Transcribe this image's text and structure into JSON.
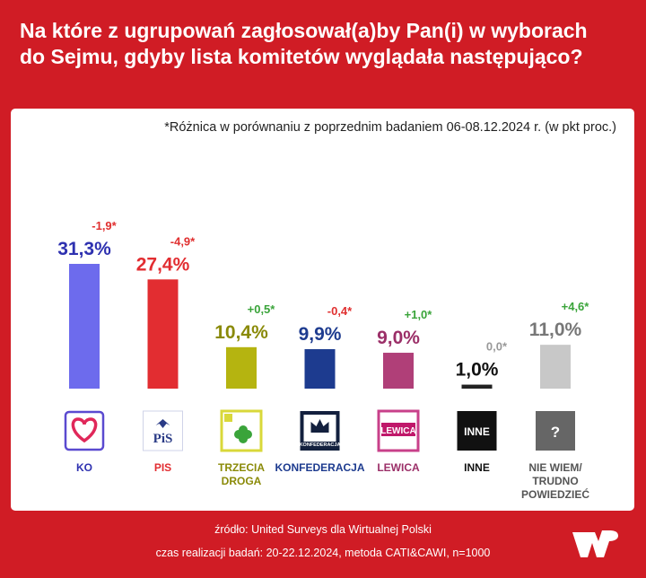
{
  "header": {
    "title_line1": "Na które z ugrupowań zagłosował(a)by Pan(i) w wyborach",
    "title_line2": "do Sejmu, gdyby lista komitetów wyglądała następująco?"
  },
  "note": "*Różnica w porównaniu z poprzednim badaniem 06-08.12.2024 r. (w pkt proc.)",
  "footer": {
    "source": "źródło: United Surveys dla Wirtualnej Polski",
    "details": "czas realizacji badań: 20-22.12.2024, metoda CATI&CAWI, n=1000"
  },
  "logo_icon": "wp-logo-icon",
  "chart_data": {
    "type": "bar",
    "title": "Na które z ugrupowań zagłosował(a)by Pan(i) w wyborach do Sejmu, gdyby lista komitetów wyglądała następująco?",
    "ylim": [
      0,
      31.3
    ],
    "categories": [
      {
        "name": "KO",
        "label_lines": [
          "KO"
        ],
        "value": 31.3,
        "value_label": "31,3%",
        "change": "-1,9*",
        "bar_color": "#6d6bed",
        "label_color": "#2e31b0",
        "change_color": "#e03030",
        "icon": "ko-heart-logo-icon",
        "logo_text": ""
      },
      {
        "name": "PIS",
        "label_lines": [
          "PIS"
        ],
        "value": 27.4,
        "value_label": "27,4%",
        "change": "-4,9*",
        "bar_color": "#e22d31",
        "label_color": "#e22d31",
        "change_color": "#e03030",
        "icon": "pis-eagle-logo-icon",
        "logo_text": "PiS"
      },
      {
        "name": "TRZECIA DROGA",
        "label_lines": [
          "TRZECIA",
          "DROGA"
        ],
        "value": 10.4,
        "value_label": "10,4%",
        "change": "+0,5*",
        "bar_color": "#b5b410",
        "label_color": "#8a8a08",
        "change_color": "#3aa43a",
        "icon": "trzecia-droga-clover-logo-icon",
        "logo_text": ""
      },
      {
        "name": "KONFEDERACJA",
        "label_lines": [
          "KONFEDERACJA"
        ],
        "value": 9.9,
        "value_label": "9,9%",
        "change": "-0,4*",
        "bar_color": "#1d3b8f",
        "label_color": "#1d3b8f",
        "change_color": "#e03030",
        "icon": "konfederacja-crown-logo-icon",
        "logo_text": "KONFEDERACJA"
      },
      {
        "name": "LEWICA",
        "label_lines": [
          "LEWICA"
        ],
        "value": 9.0,
        "value_label": "9,0%",
        "change": "+1,0*",
        "bar_color": "#b03f78",
        "label_color": "#9b2f68",
        "change_color": "#3aa43a",
        "icon": "lewica-logo-icon",
        "logo_text": "LEWICA"
      },
      {
        "name": "INNE",
        "label_lines": [
          "INNE"
        ],
        "value": 1.0,
        "value_label": "1,0%",
        "change": "0,0*",
        "bar_color": "#222222",
        "label_color": "#111111",
        "change_color": "#999999",
        "icon": "inne-logo-icon",
        "logo_text": "INNE"
      },
      {
        "name": "NIE WIEM/ TRUDNO POWIEDZIEĆ",
        "label_lines": [
          "NIE WIEM/",
          "TRUDNO",
          "POWIEDZIEĆ"
        ],
        "value": 11.0,
        "value_label": "11,0%",
        "change": "+4,6*",
        "bar_color": "#c8c8c8",
        "label_color": "#555555",
        "change_color": "#3aa43a",
        "icon": "question-mark-icon",
        "logo_text": "?"
      }
    ]
  }
}
